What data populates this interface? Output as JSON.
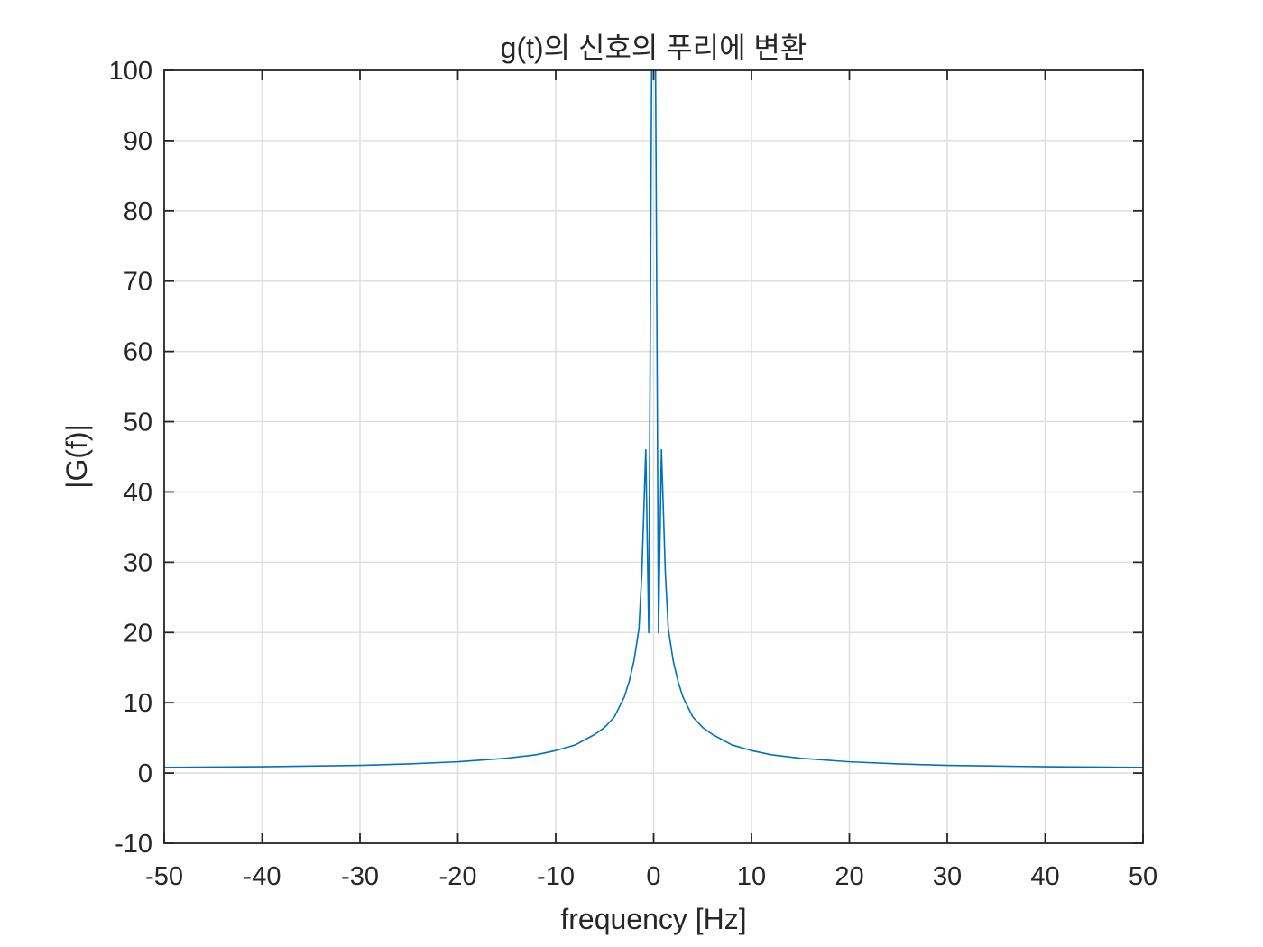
{
  "chart_data": {
    "type": "line",
    "title": "g(t)의 신호의 푸리에 변환",
    "xlabel": "frequency [Hz]",
    "ylabel": "|G(f)|",
    "xlim": [
      -50,
      50
    ],
    "ylim": [
      -10,
      100
    ],
    "xticks": [
      -50,
      -40,
      -30,
      -20,
      -10,
      0,
      10,
      20,
      30,
      40,
      50
    ],
    "yticks": [
      -10,
      0,
      10,
      20,
      30,
      40,
      50,
      60,
      70,
      80,
      90,
      100
    ],
    "xtick_labels": [
      "-50",
      "-40",
      "-30",
      "-20",
      "-10",
      "0",
      "10",
      "20",
      "30",
      "40",
      "50"
    ],
    "ytick_labels": [
      "-10",
      "0",
      "10",
      "20",
      "30",
      "40",
      "50",
      "60",
      "70",
      "80",
      "90",
      "100"
    ],
    "grid": true,
    "line_color": "#0072bd",
    "series": [
      {
        "x": [
          -50,
          -45,
          -40,
          -35,
          -30,
          -25,
          -20,
          -15,
          -12,
          -10,
          -8,
          -6,
          -5,
          -4,
          -3,
          -2.5,
          -2,
          -1.5,
          -1.2,
          -0.8,
          -0.5,
          -0.2,
          0,
          0.2,
          0.5,
          0.8,
          1.2,
          1.5,
          2,
          2.5,
          3,
          4,
          5,
          6,
          8,
          10,
          12,
          15,
          20,
          25,
          30,
          35,
          40,
          45,
          50
        ],
        "y": [
          0.8,
          0.85,
          0.9,
          1.0,
          1.1,
          1.3,
          1.6,
          2.1,
          2.6,
          3.2,
          4.0,
          5.5,
          6.5,
          8.0,
          10.8,
          13.0,
          16.0,
          20.5,
          28.5,
          46.0,
          20.0,
          100.0,
          100.0,
          100.0,
          20.0,
          46.0,
          28.5,
          20.5,
          16.0,
          13.0,
          10.8,
          8.0,
          6.5,
          5.5,
          4.0,
          3.2,
          2.6,
          2.1,
          1.6,
          1.3,
          1.1,
          1.0,
          0.9,
          0.85,
          0.8
        ]
      }
    ]
  }
}
